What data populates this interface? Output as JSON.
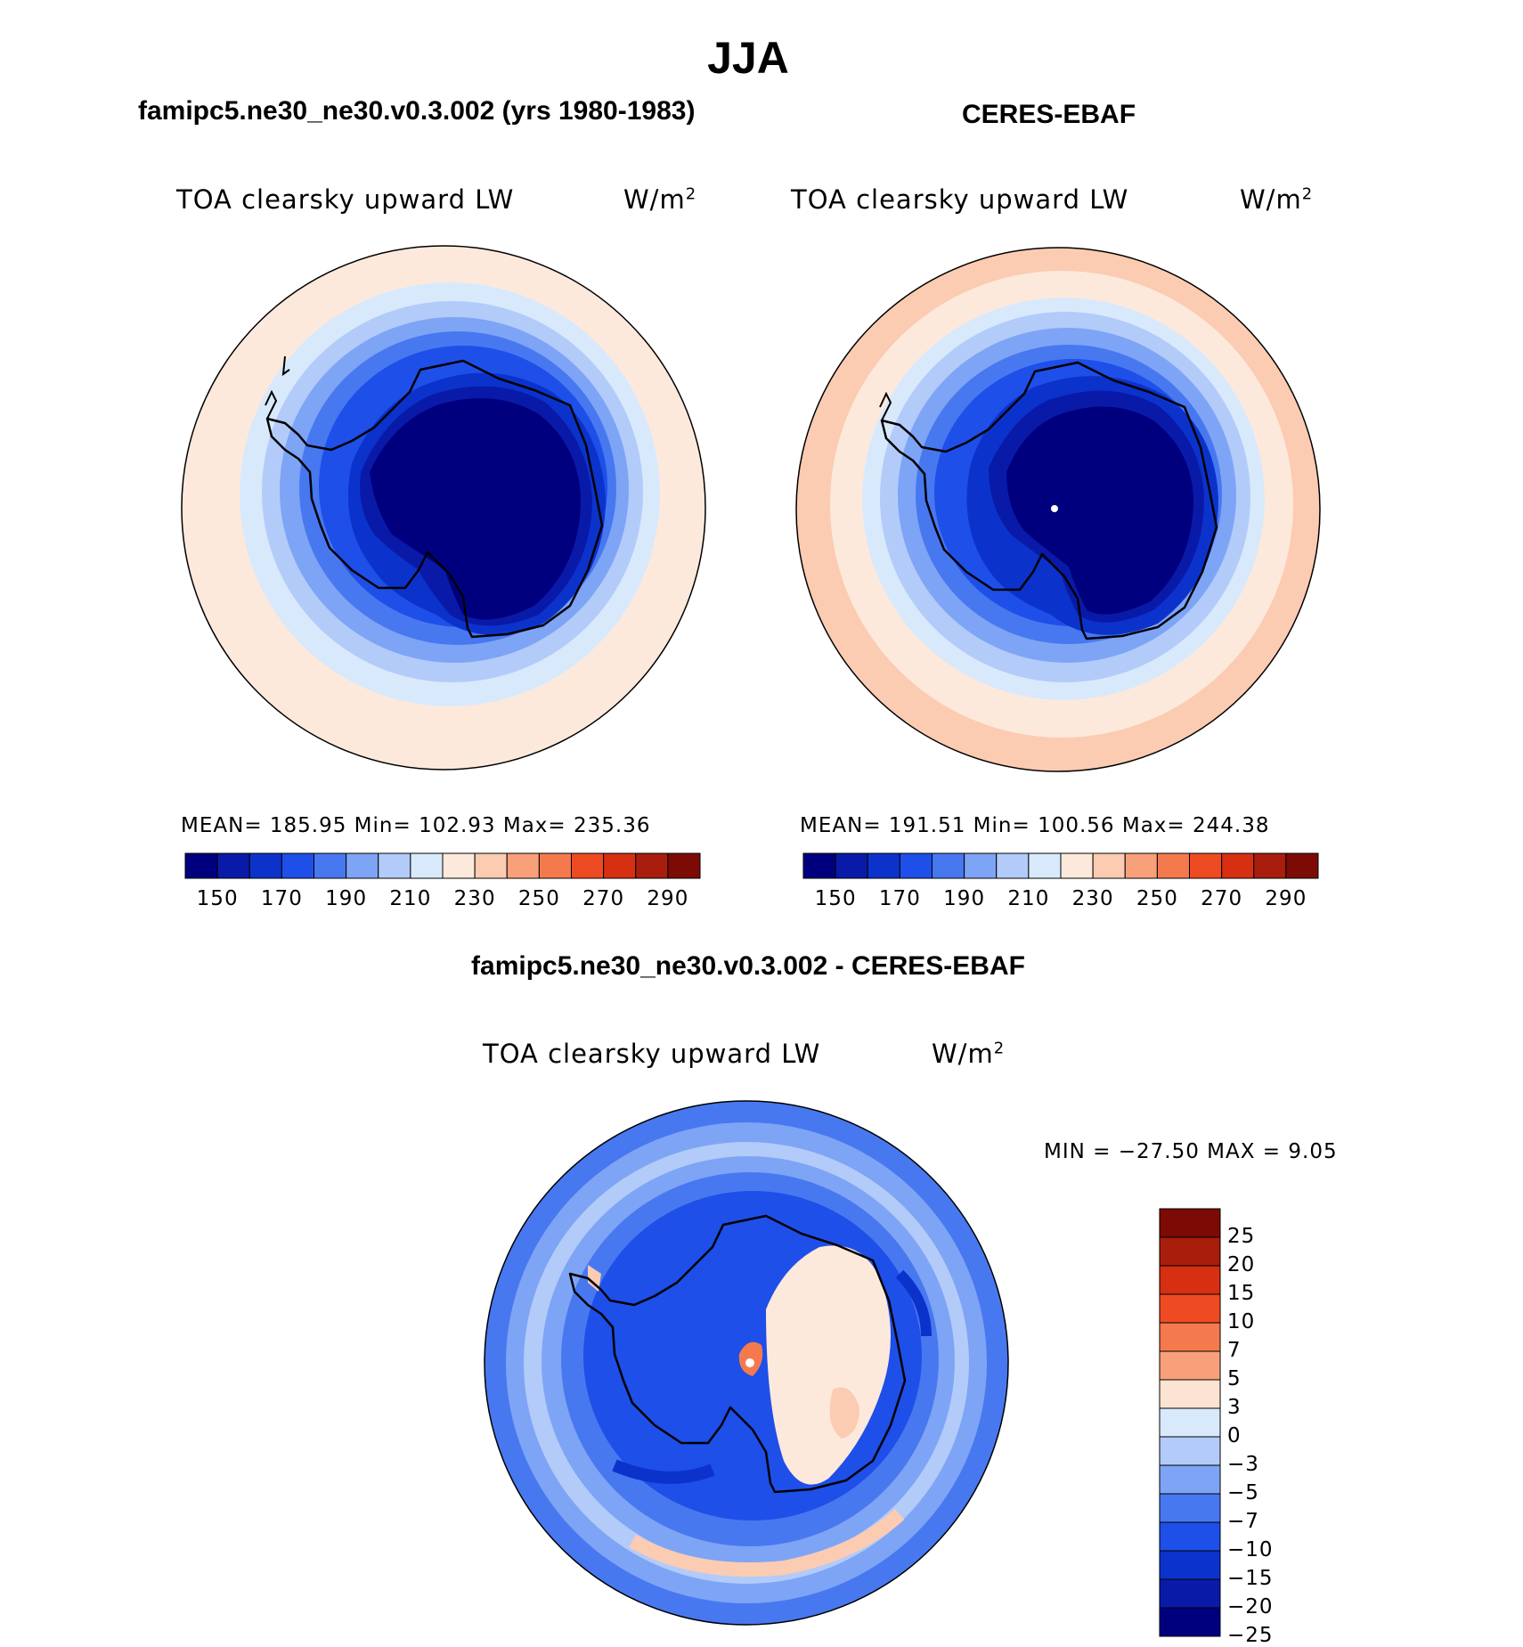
{
  "title": "JJA",
  "left_panel": {
    "heading": "famipc5.ne30_ne30.v0.3.002 (yrs 1980-1983)",
    "var_title": "TOA clearsky upward LW",
    "units": "W/m",
    "units_sup": "2",
    "stats": "MEAN=  185.95   Min=  102.93   Max=  235.36"
  },
  "right_panel": {
    "heading": "CERES-EBAF",
    "var_title": "TOA clearsky upward LW",
    "units": "W/m",
    "units_sup": "2",
    "stats": "MEAN=  191.51   Min=  100.56   Max=  244.38"
  },
  "bottom_panel": {
    "heading": "famipc5.ne30_ne30.v0.3.002 - CERES-EBAF",
    "var_title": "TOA clearsky upward LW",
    "units": "W/m",
    "units_sup": "2",
    "minmax": "MIN = −27.50 MAX =    9.05"
  },
  "colorbar_top": {
    "colors": [
      "#00007f",
      "#0a1aa8",
      "#0b33cc",
      "#1e4fe8",
      "#4878f0",
      "#7ea4f5",
      "#b2cbf9",
      "#d9e9fc",
      "#fde9dc",
      "#fbcbb2",
      "#f8a07a",
      "#f47a4e",
      "#ef4b22",
      "#d62f12",
      "#a91d0c",
      "#7c0b06"
    ],
    "ticks": [
      "150",
      "170",
      "190",
      "210",
      "230",
      "250",
      "270",
      "290"
    ]
  },
  "colorbar_diff": {
    "colors": [
      "#7c0b06",
      "#a91d0c",
      "#d62f12",
      "#ef4b22",
      "#f47a4e",
      "#f8a07a",
      "#fde4d2",
      "#d9e9fc",
      "#b2cbf9",
      "#7ea4f5",
      "#4878f0",
      "#1e4fe8",
      "#0b33cc",
      "#0a1aa8",
      "#00007f"
    ],
    "ticks": [
      "25",
      "20",
      "15",
      "10",
      "7",
      "5",
      "3",
      "0",
      "−3",
      "−5",
      "−7",
      "−10",
      "−15",
      "−20",
      "−25"
    ]
  }
}
